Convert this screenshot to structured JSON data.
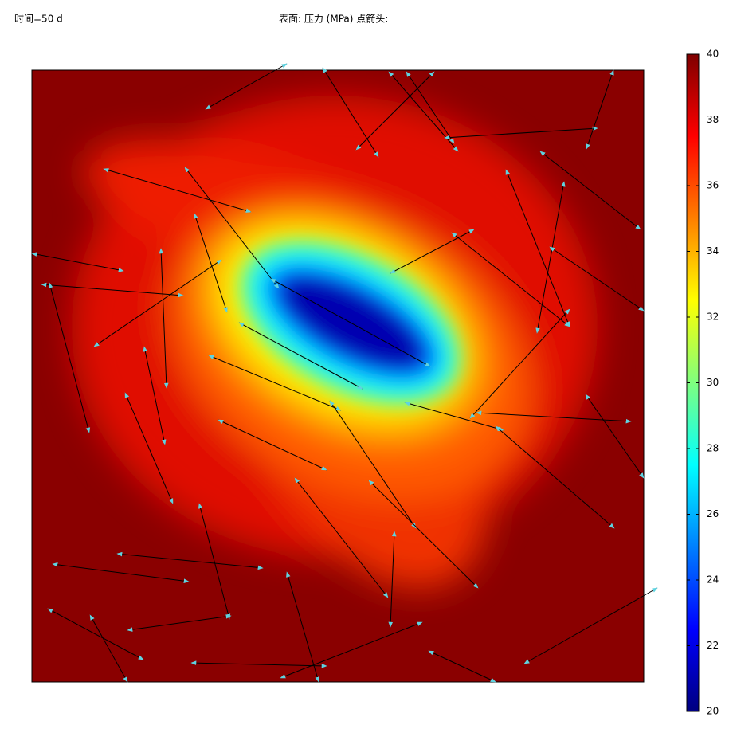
{
  "chart_data": {
    "type": "surface",
    "time_label": "时间=50 d",
    "title": "表面: 压力 (MPa)  点箭头:",
    "colorbar": {
      "colormap": "jet",
      "lim": [
        20,
        40
      ],
      "ticks": [
        20,
        22,
        24,
        26,
        28,
        30,
        32,
        34,
        36,
        38,
        40
      ]
    }
  }
}
